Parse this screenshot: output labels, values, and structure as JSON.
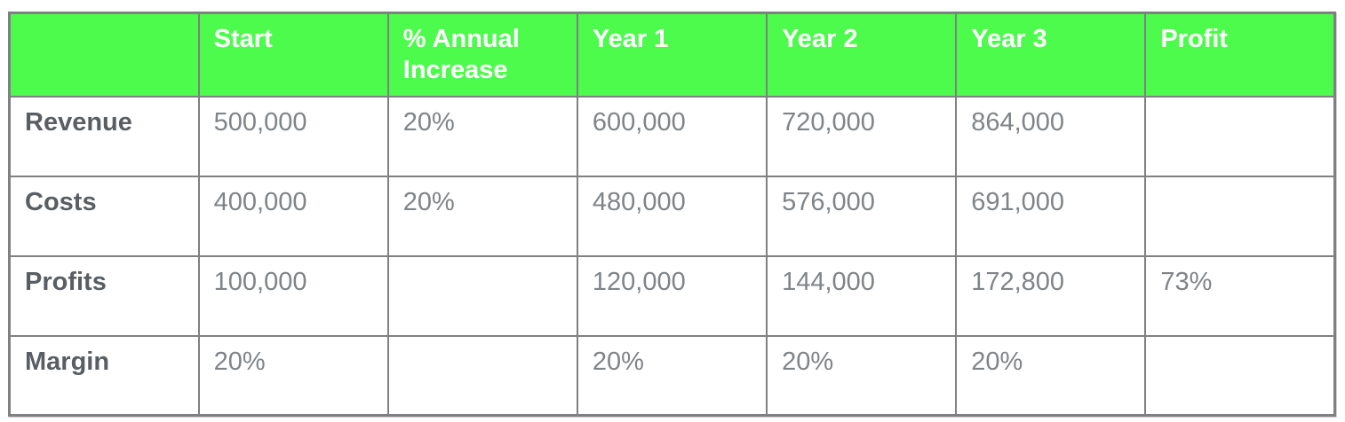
{
  "chart_data": {
    "type": "table",
    "title": "",
    "columns": [
      "",
      "Start",
      "% Annual Increase",
      "Year 1",
      "Year 2",
      "Year 3",
      "Profit"
    ],
    "rows": [
      {
        "label": "Revenue",
        "cells": [
          "500,000",
          "20%",
          "600,000",
          "720,000",
          "864,000",
          ""
        ]
      },
      {
        "label": "Costs",
        "cells": [
          "400,000",
          "20%",
          "480,000",
          "576,000",
          "691,000",
          ""
        ]
      },
      {
        "label": "Profits",
        "cells": [
          "100,000",
          "",
          "120,000",
          "144,000",
          "172,800",
          "73%"
        ]
      },
      {
        "label": "Margin",
        "cells": [
          "20%",
          "",
          "20%",
          "20%",
          "20%",
          ""
        ]
      }
    ],
    "layout": {
      "header_bg": "#4dfb4d",
      "header_text_color": "#ffffff",
      "row_label_color": "#595e64",
      "value_color": "#7f8488",
      "border_color": "#7e8083",
      "background": "#ffffff"
    }
  }
}
